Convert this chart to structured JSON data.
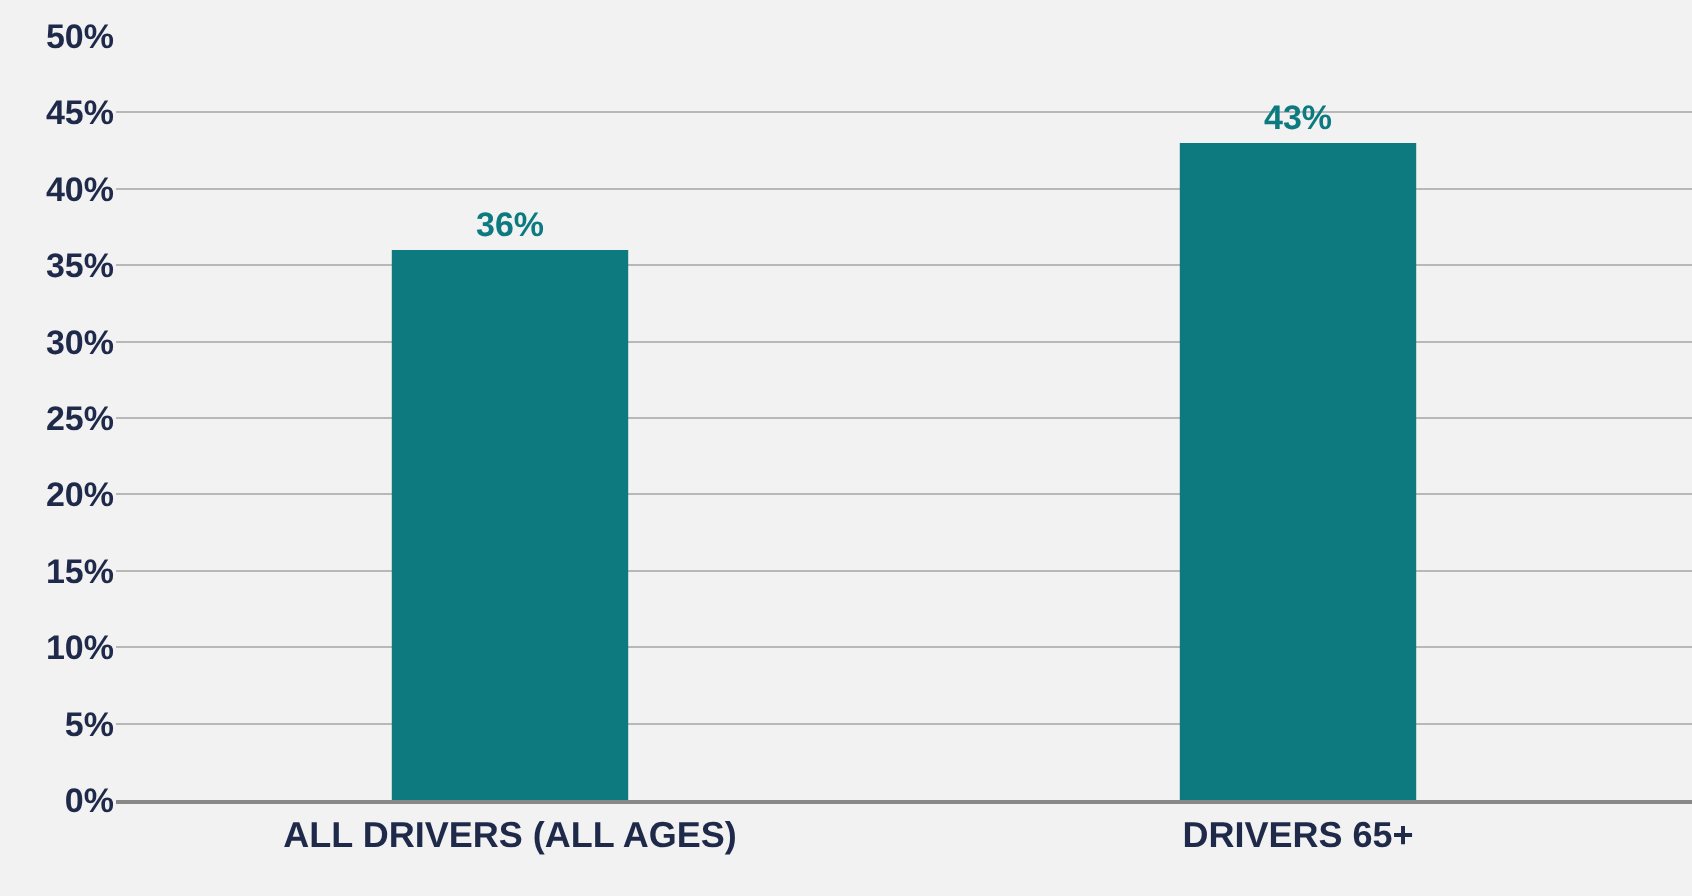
{
  "chart_data": {
    "type": "bar",
    "categories": [
      "ALL DRIVERS (ALL AGES)",
      "DRIVERS 65+"
    ],
    "values": [
      36,
      43
    ],
    "color": "#0d7a80",
    "value_labels": [
      "36%",
      "43%"
    ],
    "ylim": [
      0,
      50
    ],
    "yticks": [
      {
        "value": 0,
        "label": "0%"
      },
      {
        "value": 5,
        "label": "5%"
      },
      {
        "value": 10,
        "label": "10%"
      },
      {
        "value": 15,
        "label": "15%"
      },
      {
        "value": 20,
        "label": "20%"
      },
      {
        "value": 25,
        "label": "25%"
      },
      {
        "value": 30,
        "label": "30%"
      },
      {
        "value": 35,
        "label": "35%"
      },
      {
        "value": 40,
        "label": "40%"
      },
      {
        "value": 45,
        "label": "45%"
      },
      {
        "value": 50,
        "label": "50%"
      }
    ],
    "grid": "y",
    "legend": false
  }
}
